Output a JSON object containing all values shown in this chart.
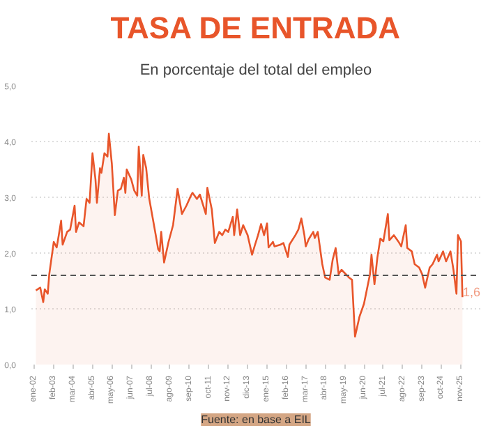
{
  "chart_data": {
    "type": "area",
    "title": "TASA DE ENTRADA",
    "subtitle": "En porcentaje del total del empleo",
    "annotations": [
      "Fuente: en base a EIL"
    ],
    "x": [
      "2002-02",
      "2002-05",
      "2002-07",
      "2002-08",
      "2002-10",
      "2002-11",
      "2003-02",
      "2003-04",
      "2003-05",
      "2003-07",
      "2003-08",
      "2003-11",
      "2004-01",
      "2004-04",
      "2004-05",
      "2004-07",
      "2004-10",
      "2004-12",
      "2005-02",
      "2005-04",
      "2005-06",
      "2005-07",
      "2005-09",
      "2005-10",
      "2005-12",
      "2006-02",
      "2006-03",
      "2006-05",
      "2006-07",
      "2006-09",
      "2006-11",
      "2007-01",
      "2007-02",
      "2007-03",
      "2007-06",
      "2007-08",
      "2007-10",
      "2007-11",
      "2008-01",
      "2008-02",
      "2008-04",
      "2008-06",
      "2008-08",
      "2008-10",
      "2008-12",
      "2009-01",
      "2009-02",
      "2009-04",
      "2009-07",
      "2009-10",
      "2010-01",
      "2010-04",
      "2010-07",
      "2010-10",
      "2010-11",
      "2011-02",
      "2011-04",
      "2011-08",
      "2011-09",
      "2011-12",
      "2012-02",
      "2012-05",
      "2012-07",
      "2012-09",
      "2012-11",
      "2013-02",
      "2013-03",
      "2013-05",
      "2013-07",
      "2013-09",
      "2013-12",
      "2014-03",
      "2014-05",
      "2014-07",
      "2014-09",
      "2014-11",
      "2015-01",
      "2015-02",
      "2015-05",
      "2015-06",
      "2015-10",
      "2015-12",
      "2016-03",
      "2016-04",
      "2016-08",
      "2016-10",
      "2016-12",
      "2017-02",
      "2017-03",
      "2017-05",
      "2017-08",
      "2017-09",
      "2017-11",
      "2018-02",
      "2018-04",
      "2018-07",
      "2018-09",
      "2018-11",
      "2019-01",
      "2019-03",
      "2019-08",
      "2019-10",
      "2019-12",
      "2020-03",
      "2020-06",
      "2020-10",
      "2020-11",
      "2021-01",
      "2021-03",
      "2021-05",
      "2021-07",
      "2021-10",
      "2021-11",
      "2022-02",
      "2022-05",
      "2022-07",
      "2022-10",
      "2022-11",
      "2023-02",
      "2023-04",
      "2023-07",
      "2023-09",
      "2023-11",
      "2024-02",
      "2024-04",
      "2024-07",
      "2024-08",
      "2024-11",
      "2025-01",
      "2025-04",
      "2025-06",
      "2025-08",
      "2025-09",
      "2025-11",
      "2025-12"
    ],
    "series": [
      {
        "color": "#e8552a",
        "values": [
          1.33,
          1.38,
          1.12,
          1.35,
          1.27,
          1.62,
          2.2,
          2.1,
          2.25,
          2.58,
          2.15,
          2.38,
          2.42,
          2.85,
          2.38,
          2.55,
          2.48,
          2.97,
          2.9,
          3.79,
          3.32,
          2.9,
          3.52,
          3.44,
          3.79,
          3.73,
          4.14,
          3.6,
          2.68,
          3.12,
          3.15,
          3.35,
          3.08,
          3.5,
          3.32,
          3.12,
          3.03,
          3.91,
          3.03,
          3.76,
          3.52,
          2.98,
          2.68,
          2.38,
          2.07,
          2.03,
          2.38,
          1.83,
          2.2,
          2.5,
          3.15,
          2.7,
          2.85,
          3.03,
          3.08,
          2.97,
          3.05,
          2.7,
          3.17,
          2.78,
          2.18,
          2.38,
          2.32,
          2.42,
          2.38,
          2.65,
          2.32,
          2.78,
          2.32,
          2.5,
          2.32,
          1.97,
          2.15,
          2.32,
          2.52,
          2.32,
          2.53,
          2.1,
          2.2,
          2.12,
          2.15,
          2.18,
          1.93,
          2.15,
          2.32,
          2.42,
          2.62,
          2.32,
          2.12,
          2.25,
          2.38,
          2.27,
          2.38,
          1.8,
          1.56,
          1.52,
          1.88,
          2.09,
          1.62,
          1.7,
          1.56,
          1.52,
          0.5,
          0.86,
          1.09,
          1.62,
          1.97,
          1.44,
          1.92,
          2.26,
          2.21,
          2.7,
          2.23,
          2.32,
          2.21,
          2.12,
          2.5,
          2.09,
          2.03,
          1.8,
          1.74,
          1.62,
          1.38,
          1.74,
          1.8,
          1.97,
          1.85,
          2.03,
          1.85,
          2.03,
          1.7,
          1.27,
          2.32,
          2.21,
          1.21
        ]
      }
    ],
    "xlim": [
      "2001-11",
      "2026-12"
    ],
    "xticks": [
      {
        "value": "2002-01",
        "label": "ene-02"
      },
      {
        "value": "2003-02",
        "label": "feb-03"
      },
      {
        "value": "2004-03",
        "label": "mar-04"
      },
      {
        "value": "2005-04",
        "label": "abr-05"
      },
      {
        "value": "2006-05",
        "label": "may-06"
      },
      {
        "value": "2007-06",
        "label": "jun-07"
      },
      {
        "value": "2008-07",
        "label": "jul-08"
      },
      {
        "value": "2009-08",
        "label": "ago-09"
      },
      {
        "value": "2010-09",
        "label": "sep-10"
      },
      {
        "value": "2011-10",
        "label": "oct-11"
      },
      {
        "value": "2012-11",
        "label": "nov-12"
      },
      {
        "value": "2013-12",
        "label": "dic-13"
      },
      {
        "value": "2015-01",
        "label": "ene-15"
      },
      {
        "value": "2016-02",
        "label": "feb-16"
      },
      {
        "value": "2017-03",
        "label": "mar-17"
      },
      {
        "value": "2018-04",
        "label": "abr-18"
      },
      {
        "value": "2019-05",
        "label": "may-19"
      },
      {
        "value": "2020-06",
        "label": "jun-20"
      },
      {
        "value": "2021-07",
        "label": "jul-21"
      },
      {
        "value": "2022-08",
        "label": "ago-22"
      },
      {
        "value": "2023-09",
        "label": "sep-23"
      },
      {
        "value": "2024-10",
        "label": "oct-24"
      },
      {
        "value": "2025-11",
        "label": "nov-25"
      }
    ],
    "ylim": [
      0,
      5
    ],
    "yticks": [
      {
        "value": 0,
        "label": "0,0"
      },
      {
        "value": 1,
        "label": "1,0"
      },
      {
        "value": 2,
        "label": "2,0"
      },
      {
        "value": 3,
        "label": "3,0"
      },
      {
        "value": 4,
        "label": "4,0"
      },
      {
        "value": 5,
        "label": "5,0"
      }
    ],
    "ref_lines": [
      {
        "axis": "y",
        "value": 1.6,
        "label": "1,6",
        "color": "#555555",
        "line_style": "dashed"
      }
    ],
    "grid": "y",
    "line_style": "solid"
  }
}
